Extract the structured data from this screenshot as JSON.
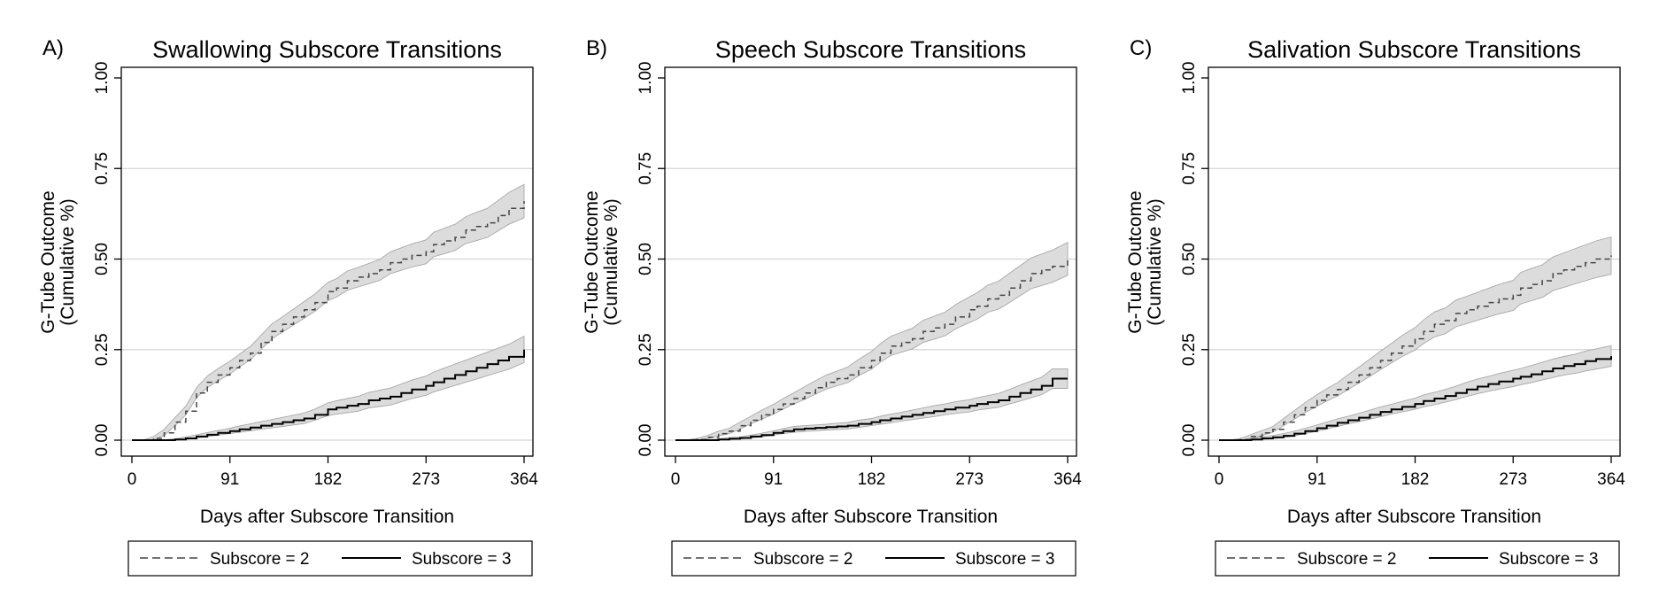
{
  "chart_data": [
    {
      "type": "line",
      "panel_label": "A)",
      "title": "Swallowing Subscore Transitions",
      "xlabel": "Days after Subscore Transition",
      "ylabel_line1": "G-Tube Outcome",
      "ylabel_line2": "(Cumulative %)",
      "xlim": [
        0,
        364
      ],
      "ylim": [
        0,
        1
      ],
      "xticks": [
        "0",
        "91",
        "182",
        "273",
        "364"
      ],
      "yticks": [
        "0.00",
        "0.25",
        "0.50",
        "0.75",
        "1.00"
      ],
      "grid": "horizontal",
      "legend_position": "bottom",
      "series": [
        {
          "name": "Subscore = 2",
          "style": "dashed",
          "color": "#444444",
          "x": [
            0,
            10,
            20,
            30,
            40,
            50,
            60,
            70,
            80,
            91,
            100,
            110,
            120,
            130,
            140,
            150,
            160,
            170,
            182,
            190,
            200,
            210,
            220,
            230,
            240,
            250,
            260,
            273,
            280,
            290,
            300,
            310,
            320,
            330,
            340,
            350,
            364
          ],
          "y": [
            0,
            0,
            0.005,
            0.02,
            0.05,
            0.08,
            0.13,
            0.16,
            0.18,
            0.2,
            0.22,
            0.24,
            0.27,
            0.3,
            0.32,
            0.34,
            0.36,
            0.38,
            0.41,
            0.42,
            0.44,
            0.45,
            0.46,
            0.47,
            0.49,
            0.5,
            0.51,
            0.52,
            0.54,
            0.55,
            0.56,
            0.58,
            0.59,
            0.6,
            0.62,
            0.64,
            0.66
          ],
          "ci_lower": [
            0,
            0,
            0.002,
            0.013,
            0.04,
            0.07,
            0.117,
            0.145,
            0.164,
            0.183,
            0.203,
            0.222,
            0.251,
            0.28,
            0.299,
            0.318,
            0.337,
            0.356,
            0.385,
            0.395,
            0.414,
            0.423,
            0.432,
            0.441,
            0.46,
            0.469,
            0.478,
            0.487,
            0.506,
            0.515,
            0.524,
            0.543,
            0.551,
            0.56,
            0.578,
            0.596,
            0.614
          ],
          "ci_upper": [
            0,
            0,
            0.01,
            0.03,
            0.062,
            0.094,
            0.145,
            0.177,
            0.198,
            0.218,
            0.238,
            0.259,
            0.29,
            0.321,
            0.341,
            0.362,
            0.383,
            0.404,
            0.436,
            0.446,
            0.467,
            0.477,
            0.488,
            0.499,
            0.52,
            0.531,
            0.542,
            0.553,
            0.574,
            0.585,
            0.596,
            0.617,
            0.629,
            0.64,
            0.662,
            0.684,
            0.706
          ]
        },
        {
          "name": "Subscore = 3",
          "style": "solid",
          "color": "#000000",
          "x": [
            0,
            10,
            20,
            30,
            40,
            50,
            60,
            70,
            80,
            91,
            100,
            110,
            120,
            130,
            140,
            150,
            160,
            170,
            182,
            190,
            200,
            210,
            220,
            230,
            240,
            250,
            260,
            273,
            280,
            290,
            300,
            310,
            320,
            330,
            340,
            350,
            364
          ],
          "y": [
            0,
            0,
            0,
            0,
            0.002,
            0.005,
            0.01,
            0.015,
            0.02,
            0.025,
            0.03,
            0.035,
            0.04,
            0.045,
            0.05,
            0.055,
            0.06,
            0.07,
            0.085,
            0.09,
            0.095,
            0.1,
            0.11,
            0.115,
            0.12,
            0.13,
            0.14,
            0.15,
            0.16,
            0.17,
            0.18,
            0.19,
            0.2,
            0.21,
            0.22,
            0.23,
            0.25
          ],
          "ci_lower": [
            0,
            0,
            0,
            0,
            0,
            0.002,
            0.006,
            0.01,
            0.014,
            0.018,
            0.022,
            0.026,
            0.03,
            0.034,
            0.038,
            0.042,
            0.046,
            0.055,
            0.068,
            0.072,
            0.076,
            0.08,
            0.089,
            0.093,
            0.097,
            0.106,
            0.115,
            0.124,
            0.133,
            0.142,
            0.151,
            0.16,
            0.169,
            0.178,
            0.187,
            0.196,
            0.214
          ],
          "ci_upper": [
            0,
            0,
            0,
            0.001,
            0.004,
            0.009,
            0.015,
            0.021,
            0.027,
            0.033,
            0.039,
            0.045,
            0.051,
            0.057,
            0.063,
            0.069,
            0.075,
            0.086,
            0.103,
            0.109,
            0.115,
            0.121,
            0.132,
            0.138,
            0.144,
            0.155,
            0.166,
            0.177,
            0.188,
            0.199,
            0.21,
            0.221,
            0.232,
            0.243,
            0.254,
            0.265,
            0.287
          ]
        }
      ]
    },
    {
      "type": "line",
      "panel_label": "B)",
      "title": "Speech Subscore Transitions",
      "xlabel": "Days after Subscore Transition",
      "ylabel_line1": "G-Tube Outcome",
      "ylabel_line2": "(Cumulative %)",
      "xlim": [
        0,
        364
      ],
      "ylim": [
        0,
        1
      ],
      "xticks": [
        "0",
        "91",
        "182",
        "273",
        "364"
      ],
      "yticks": [
        "0.00",
        "0.25",
        "0.50",
        "0.75",
        "1.00"
      ],
      "grid": "horizontal",
      "legend_position": "bottom",
      "series": [
        {
          "name": "Subscore = 2",
          "style": "dashed",
          "color": "#444444",
          "x": [
            0,
            10,
            20,
            30,
            40,
            50,
            60,
            70,
            80,
            91,
            100,
            110,
            120,
            130,
            140,
            150,
            160,
            170,
            182,
            190,
            200,
            210,
            220,
            230,
            240,
            250,
            260,
            273,
            280,
            290,
            300,
            310,
            320,
            330,
            340,
            350,
            364
          ],
          "y": [
            0,
            0,
            0.002,
            0.008,
            0.018,
            0.025,
            0.04,
            0.055,
            0.07,
            0.085,
            0.1,
            0.115,
            0.13,
            0.145,
            0.16,
            0.17,
            0.18,
            0.2,
            0.22,
            0.24,
            0.26,
            0.27,
            0.28,
            0.3,
            0.31,
            0.32,
            0.34,
            0.36,
            0.37,
            0.39,
            0.4,
            0.42,
            0.44,
            0.46,
            0.47,
            0.48,
            0.5
          ],
          "ci_lower": [
            0,
            0,
            0,
            0.004,
            0.012,
            0.018,
            0.031,
            0.045,
            0.058,
            0.072,
            0.086,
            0.1,
            0.113,
            0.127,
            0.141,
            0.15,
            0.159,
            0.178,
            0.196,
            0.215,
            0.234,
            0.243,
            0.252,
            0.27,
            0.279,
            0.288,
            0.307,
            0.325,
            0.334,
            0.353,
            0.362,
            0.38,
            0.399,
            0.418,
            0.427,
            0.436,
            0.455
          ],
          "ci_upper": [
            0,
            0,
            0.005,
            0.013,
            0.025,
            0.033,
            0.05,
            0.066,
            0.083,
            0.099,
            0.115,
            0.131,
            0.148,
            0.164,
            0.18,
            0.191,
            0.202,
            0.223,
            0.245,
            0.266,
            0.287,
            0.298,
            0.309,
            0.331,
            0.342,
            0.353,
            0.374,
            0.396,
            0.407,
            0.428,
            0.439,
            0.461,
            0.482,
            0.503,
            0.514,
            0.525,
            0.546
          ]
        },
        {
          "name": "Subscore = 3",
          "style": "solid",
          "color": "#000000",
          "x": [
            0,
            10,
            20,
            30,
            40,
            50,
            60,
            70,
            80,
            91,
            100,
            110,
            120,
            130,
            140,
            150,
            160,
            170,
            182,
            190,
            200,
            210,
            220,
            230,
            240,
            250,
            260,
            273,
            280,
            290,
            300,
            310,
            320,
            330,
            340,
            350,
            364
          ],
          "y": [
            0,
            0,
            0,
            0,
            0.002,
            0.004,
            0.006,
            0.01,
            0.014,
            0.02,
            0.025,
            0.03,
            0.032,
            0.034,
            0.036,
            0.038,
            0.04,
            0.045,
            0.05,
            0.055,
            0.06,
            0.065,
            0.07,
            0.075,
            0.08,
            0.085,
            0.09,
            0.095,
            0.1,
            0.105,
            0.11,
            0.12,
            0.13,
            0.14,
            0.15,
            0.17,
            0.17
          ],
          "ci_lower": [
            0,
            0,
            0,
            0,
            0,
            0.001,
            0.003,
            0.006,
            0.009,
            0.014,
            0.018,
            0.022,
            0.024,
            0.026,
            0.028,
            0.029,
            0.031,
            0.035,
            0.04,
            0.044,
            0.048,
            0.053,
            0.057,
            0.061,
            0.065,
            0.07,
            0.074,
            0.078,
            0.083,
            0.087,
            0.091,
            0.1,
            0.108,
            0.117,
            0.126,
            0.143,
            0.143
          ],
          "ci_upper": [
            0,
            0,
            0,
            0,
            0.004,
            0.007,
            0.009,
            0.014,
            0.019,
            0.026,
            0.032,
            0.038,
            0.04,
            0.042,
            0.044,
            0.047,
            0.049,
            0.055,
            0.06,
            0.066,
            0.072,
            0.077,
            0.083,
            0.089,
            0.095,
            0.1,
            0.106,
            0.112,
            0.117,
            0.123,
            0.129,
            0.14,
            0.152,
            0.163,
            0.174,
            0.197,
            0.197
          ]
        }
      ]
    },
    {
      "type": "line",
      "panel_label": "C)",
      "title": "Salivation Subscore Transitions",
      "xlabel": "Days after Subscore Transition",
      "ylabel_line1": "G-Tube Outcome",
      "ylabel_line2": "(Cumulative %)",
      "xlim": [
        0,
        364
      ],
      "ylim": [
        0,
        1
      ],
      "xticks": [
        "0",
        "91",
        "182",
        "273",
        "364"
      ],
      "yticks": [
        "0.00",
        "0.25",
        "0.50",
        "0.75",
        "1.00"
      ],
      "grid": "horizontal",
      "legend_position": "bottom",
      "series": [
        {
          "name": "Subscore = 2",
          "style": "dashed",
          "color": "#444444",
          "x": [
            0,
            10,
            20,
            30,
            40,
            50,
            60,
            70,
            80,
            91,
            100,
            110,
            120,
            130,
            140,
            150,
            160,
            170,
            182,
            190,
            200,
            210,
            220,
            230,
            240,
            250,
            260,
            273,
            280,
            290,
            300,
            310,
            320,
            330,
            340,
            350,
            364
          ],
          "y": [
            0,
            0,
            0.002,
            0.01,
            0.02,
            0.03,
            0.05,
            0.07,
            0.09,
            0.11,
            0.125,
            0.14,
            0.16,
            0.18,
            0.2,
            0.22,
            0.24,
            0.26,
            0.28,
            0.3,
            0.32,
            0.33,
            0.35,
            0.36,
            0.37,
            0.38,
            0.39,
            0.4,
            0.42,
            0.43,
            0.44,
            0.46,
            0.47,
            0.48,
            0.49,
            0.5,
            0.51
          ],
          "ci_lower": [
            0,
            0,
            0,
            0.005,
            0.013,
            0.022,
            0.04,
            0.058,
            0.076,
            0.094,
            0.108,
            0.122,
            0.14,
            0.158,
            0.176,
            0.195,
            0.213,
            0.231,
            0.249,
            0.267,
            0.285,
            0.294,
            0.313,
            0.322,
            0.331,
            0.34,
            0.349,
            0.358,
            0.376,
            0.385,
            0.394,
            0.413,
            0.422,
            0.431,
            0.44,
            0.449,
            0.458
          ],
          "ci_upper": [
            0,
            0,
            0.005,
            0.016,
            0.027,
            0.038,
            0.06,
            0.082,
            0.104,
            0.126,
            0.142,
            0.159,
            0.181,
            0.202,
            0.224,
            0.246,
            0.267,
            0.289,
            0.311,
            0.332,
            0.354,
            0.365,
            0.387,
            0.397,
            0.408,
            0.419,
            0.43,
            0.441,
            0.463,
            0.474,
            0.484,
            0.506,
            0.517,
            0.528,
            0.539,
            0.55,
            0.561
          ]
        },
        {
          "name": "Subscore = 3",
          "style": "solid",
          "color": "#000000",
          "x": [
            0,
            10,
            20,
            30,
            40,
            50,
            60,
            70,
            80,
            91,
            100,
            110,
            120,
            130,
            140,
            150,
            160,
            170,
            182,
            190,
            200,
            210,
            220,
            230,
            240,
            250,
            260,
            273,
            280,
            290,
            300,
            310,
            320,
            330,
            340,
            350,
            364
          ],
          "y": [
            0,
            0,
            0,
            0.002,
            0.005,
            0.008,
            0.012,
            0.018,
            0.025,
            0.033,
            0.04,
            0.048,
            0.055,
            0.062,
            0.07,
            0.078,
            0.085,
            0.092,
            0.1,
            0.108,
            0.115,
            0.122,
            0.13,
            0.14,
            0.148,
            0.155,
            0.162,
            0.17,
            0.175,
            0.182,
            0.19,
            0.198,
            0.205,
            0.21,
            0.218,
            0.224,
            0.232
          ],
          "ci_lower": [
            0,
            0,
            0,
            0,
            0.002,
            0.004,
            0.007,
            0.012,
            0.018,
            0.025,
            0.031,
            0.038,
            0.045,
            0.051,
            0.058,
            0.065,
            0.072,
            0.078,
            0.085,
            0.092,
            0.098,
            0.105,
            0.112,
            0.121,
            0.128,
            0.135,
            0.141,
            0.148,
            0.153,
            0.159,
            0.166,
            0.173,
            0.18,
            0.184,
            0.191,
            0.196,
            0.204
          ],
          "ci_upper": [
            0,
            0,
            0,
            0.004,
            0.009,
            0.013,
            0.018,
            0.025,
            0.033,
            0.042,
            0.05,
            0.059,
            0.066,
            0.074,
            0.083,
            0.092,
            0.099,
            0.107,
            0.116,
            0.125,
            0.132,
            0.14,
            0.149,
            0.16,
            0.169,
            0.176,
            0.184,
            0.193,
            0.198,
            0.206,
            0.215,
            0.224,
            0.231,
            0.237,
            0.246,
            0.252,
            0.261
          ]
        }
      ]
    }
  ]
}
